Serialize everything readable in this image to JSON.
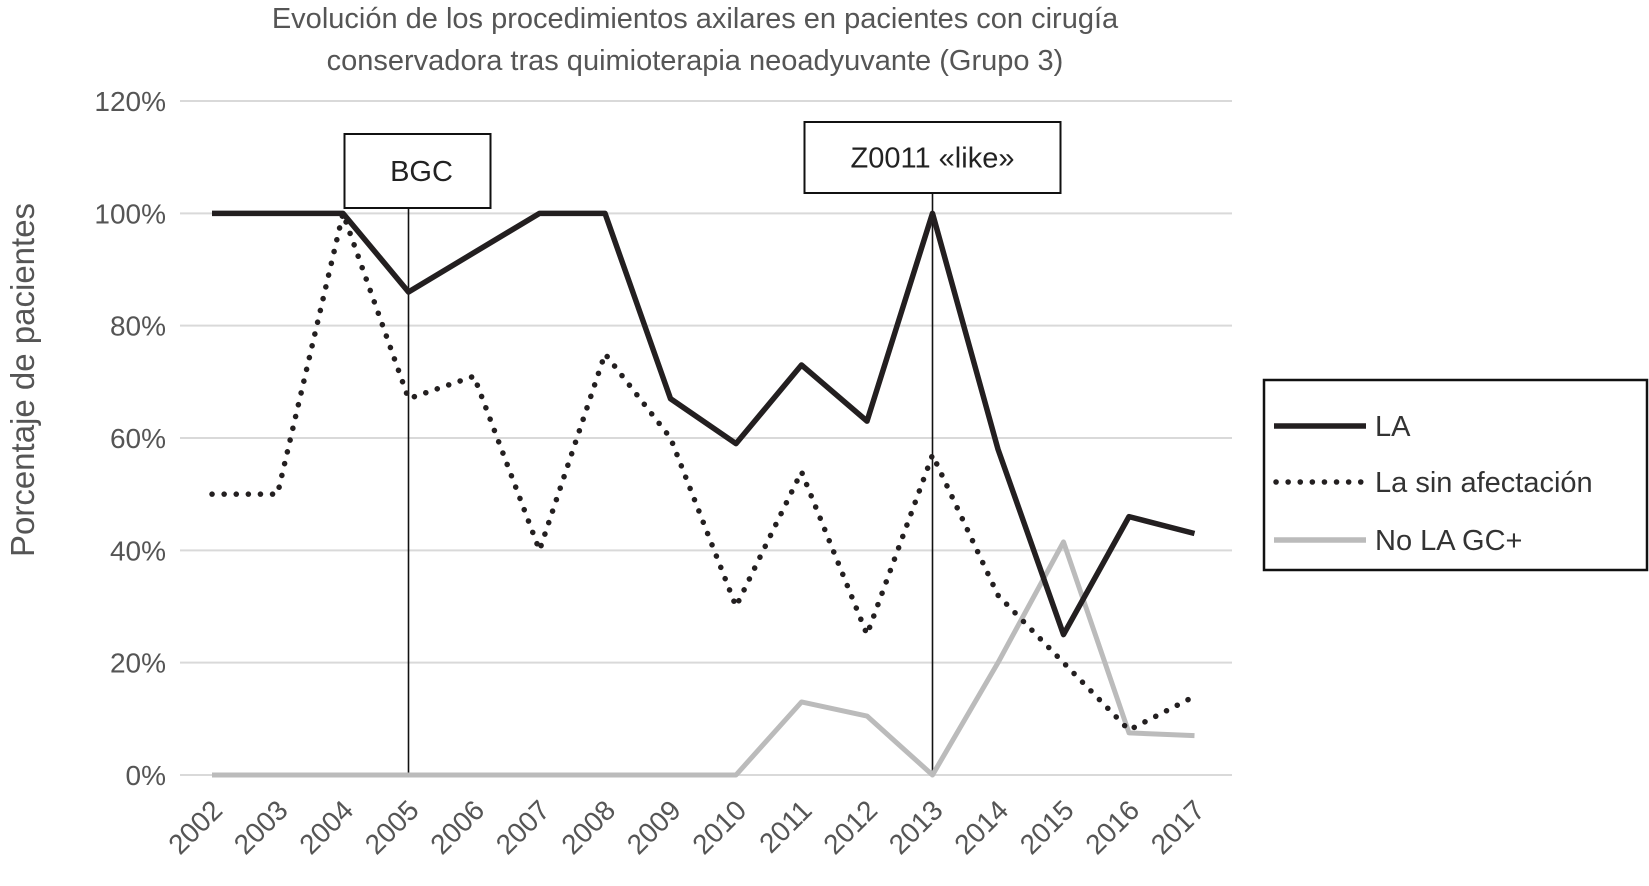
{
  "chart_data": {
    "type": "line",
    "title_lines": [
      "Evolución de los procedimientos axilares en pacientes con cirugía",
      "conservadora tras quimioterapia neoadyuvante (Grupo 3)"
    ],
    "ylabel": "Porcentaje de pacientes",
    "xlabel": "",
    "categories": [
      "2002",
      "2003",
      "2004",
      "2005",
      "2006",
      "2007",
      "2008",
      "2009",
      "2010",
      "2011",
      "2012",
      "2013",
      "2014",
      "2015",
      "2016",
      "2017"
    ],
    "y_ticks": [
      "0%",
      "20%",
      "40%",
      "60%",
      "80%",
      "100%",
      "120%"
    ],
    "ylim": [
      0,
      120
    ],
    "grid": true,
    "legend_position": "right",
    "series": [
      {
        "name": "LA",
        "style": "solid",
        "color": "#231f20",
        "values": [
          100,
          100,
          100,
          86,
          93,
          100,
          100,
          67,
          59,
          73,
          63,
          100,
          58,
          25,
          46,
          43
        ]
      },
      {
        "name": "La sin afectación",
        "style": "dotted",
        "color": "#231f20",
        "values": [
          50,
          50,
          100,
          67,
          71,
          40,
          75,
          60,
          30,
          54,
          25,
          57,
          32,
          20,
          8,
          14
        ]
      },
      {
        "name": "No LA GC+",
        "style": "solid",
        "color": "#bbbbbb",
        "values": [
          0,
          0,
          0,
          0,
          0,
          0,
          0,
          0,
          0,
          13,
          10.5,
          0,
          20,
          41.5,
          7.5,
          7
        ]
      }
    ],
    "annotations": [
      {
        "label": "BGC",
        "x": "2005"
      },
      {
        "label": "Z0011 «like»",
        "x": "2013"
      }
    ]
  }
}
